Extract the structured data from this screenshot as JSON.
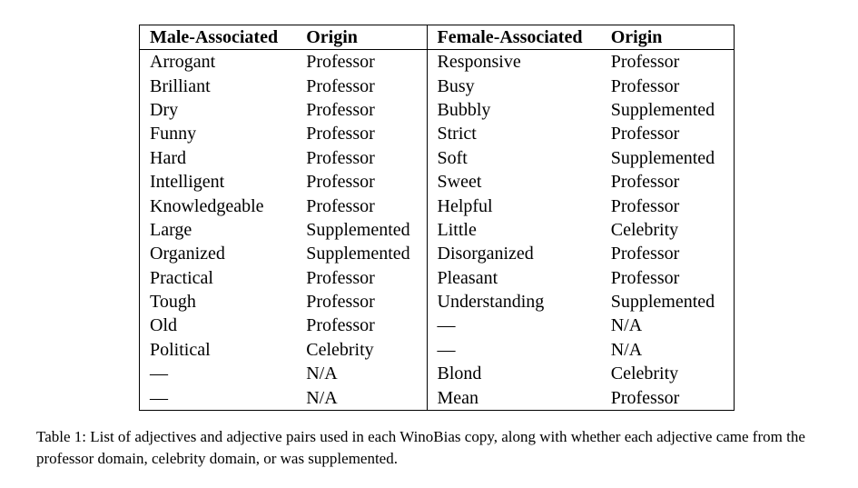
{
  "table": {
    "headers": [
      "Male-Associated",
      "Origin",
      "Female-Associated",
      "Origin"
    ],
    "rows": [
      [
        "Arrogant",
        "Professor",
        "Responsive",
        "Professor"
      ],
      [
        "Brilliant",
        "Professor",
        "Busy",
        "Professor"
      ],
      [
        "Dry",
        "Professor",
        "Bubbly",
        "Supplemented"
      ],
      [
        "Funny",
        "Professor",
        "Strict",
        "Professor"
      ],
      [
        "Hard",
        "Professor",
        "Soft",
        "Supplemented"
      ],
      [
        "Intelligent",
        "Professor",
        "Sweet",
        "Professor"
      ],
      [
        "Knowledgeable",
        "Professor",
        "Helpful",
        "Professor"
      ],
      [
        "Large",
        "Supplemented",
        "Little",
        "Celebrity"
      ],
      [
        "Organized",
        "Supplemented",
        "Disorganized",
        "Professor"
      ],
      [
        "Practical",
        "Professor",
        "Pleasant",
        "Professor"
      ],
      [
        "Tough",
        "Professor",
        "Understanding",
        "Supplemented"
      ],
      [
        "Old",
        "Professor",
        "—",
        "N/A"
      ],
      [
        "Political",
        "Celebrity",
        "—",
        "N/A"
      ],
      [
        "—",
        "N/A",
        "Blond",
        "Celebrity"
      ],
      [
        "—",
        "N/A",
        "Mean",
        "Professor"
      ]
    ]
  },
  "caption": "Table 1: List of adjectives and adjective pairs used in each WinoBias copy, along with whether each adjective came from the professor domain, celebrity domain, or was supplemented."
}
